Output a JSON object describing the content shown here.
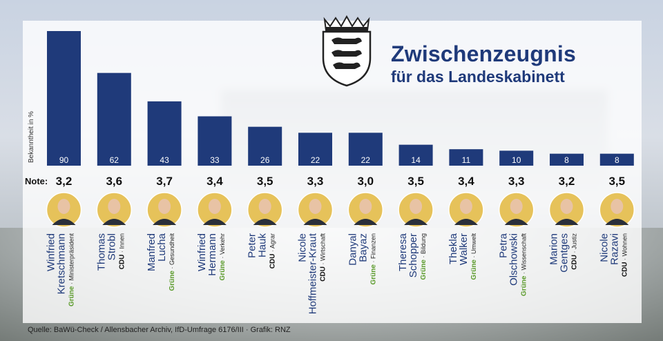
{
  "title": "Zwischenzeugnis",
  "subtitle": "für das Landeskabinett",
  "ylabel": "Bekanntheit in %",
  "note_label": "Note:",
  "source": "Quelle: BaWü-Check / Allensbacher Archiv, IfD-Umfrage 6176/III  ·  Grafik: RNZ",
  "colors": {
    "bar": "#1f3a7a",
    "name": "#1f3a7a",
    "party_gruene": "#5a9a2a",
    "party_cdu": "#111111"
  },
  "chart_data": {
    "type": "bar",
    "ylabel": "Bekanntheit in %",
    "ylim": [
      0,
      90
    ],
    "categories": [
      "Winfried Kretschmann",
      "Thomas Strobl",
      "Manfred Lucha",
      "Winfried Hermann",
      "Peter Hauk",
      "Nicole Hoffmeister-Kraut",
      "Danyal Bayaz",
      "Theresa Schopper",
      "Thekla Walker",
      "Petra Olschowski",
      "Marion Gentges",
      "Nicole Razavi"
    ],
    "values": [
      90,
      62,
      43,
      33,
      26,
      22,
      22,
      14,
      11,
      10,
      8,
      8
    ],
    "grades": [
      "3,2",
      "3,6",
      "3,7",
      "3,4",
      "3,5",
      "3,3",
      "3,0",
      "3,5",
      "3,4",
      "3,3",
      "3,2",
      "3,5"
    ]
  },
  "people": [
    {
      "first": "Winfried",
      "last": "Kretschmann",
      "party": "Grüne",
      "role": "Ministerpräsident"
    },
    {
      "first": "Thomas",
      "last": "Strobl",
      "party": "CDU",
      "role": "Innen"
    },
    {
      "first": "Manfred",
      "last": "Lucha",
      "party": "Grüne",
      "role": "Gesundheit"
    },
    {
      "first": "Winfried",
      "last": "Hermann",
      "party": "Grüne",
      "role": "Verkehr"
    },
    {
      "first": "Peter",
      "last": "Hauk",
      "party": "CDU",
      "role": "Agrar"
    },
    {
      "first": "Nicole",
      "last": "Hoffmeister-Kraut",
      "party": "CDU",
      "role": "Wirtschaft"
    },
    {
      "first": "Danyal",
      "last": "Bayaz",
      "party": "Grüne",
      "role": "Finanzen"
    },
    {
      "first": "Theresa",
      "last": "Schopper",
      "party": "Grüne",
      "role": "Bildung"
    },
    {
      "first": "Thekla",
      "last": "Walker",
      "party": "Grüne",
      "role": "Umwelt"
    },
    {
      "first": "Petra",
      "last": "Olschowski",
      "party": "Grüne",
      "role": "Wissenschaft"
    },
    {
      "first": "Marion",
      "last": "Gentges",
      "party": "CDU",
      "role": "Justiz"
    },
    {
      "first": "Nicole",
      "last": "Razavi",
      "party": "CDU",
      "role": "Wohnen"
    }
  ]
}
